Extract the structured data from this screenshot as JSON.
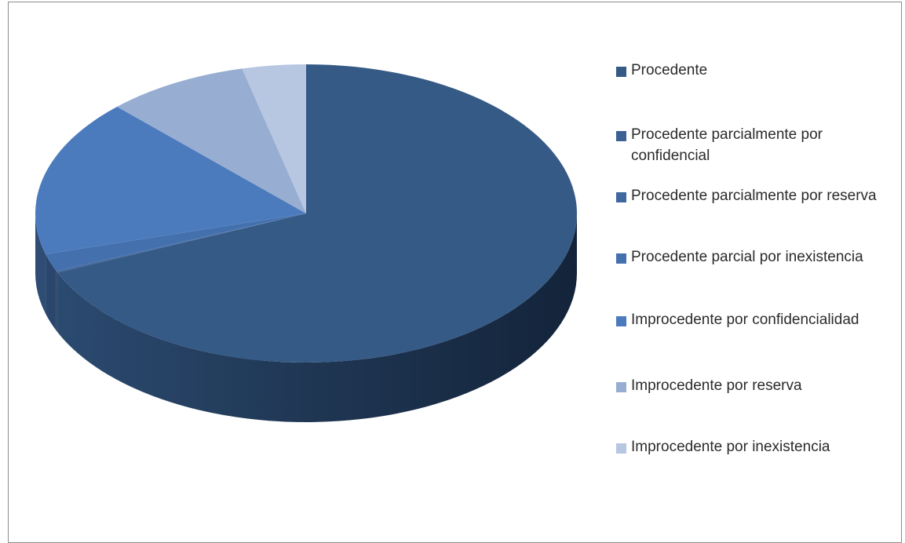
{
  "chart_data": {
    "type": "pie",
    "style": "3d",
    "categories": [
      "Procedente",
      "Procedente parcialmente por confidencial",
      "Procedente parcialmente por reserva",
      "Procedente parcial por inexistencia",
      "Improcedente por confidencialidad",
      "Improcedente por reserva",
      "Improcedente por inexistencia"
    ],
    "values": [
      68.5,
      0.1,
      0.1,
      1.9,
      17.1,
      8.5,
      3.8
    ],
    "colors": [
      "#355a86",
      "#3b6194",
      "#3f67a0",
      "#4471ae",
      "#4c7bbd",
      "#97aed2",
      "#b7c6e1"
    ],
    "legend_position": "right"
  }
}
